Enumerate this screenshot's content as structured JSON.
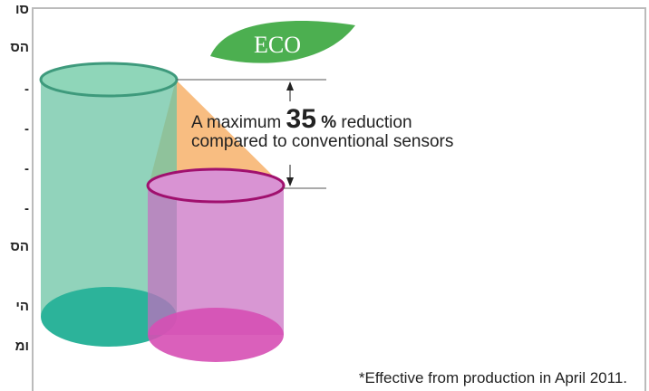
{
  "sidebar": {
    "lines": [
      "סו",
      "הס",
      "-",
      "-",
      "-",
      "-",
      "הס",
      "הי",
      "ומ"
    ]
  },
  "figure": {
    "badge": "ECO",
    "caption": {
      "prefix": "A maximum",
      "number": "35",
      "unit": "%",
      "suffix": "reduction",
      "line2": "compared to conventional sensors"
    },
    "footnote": "*Effective from production in April 2011."
  }
}
